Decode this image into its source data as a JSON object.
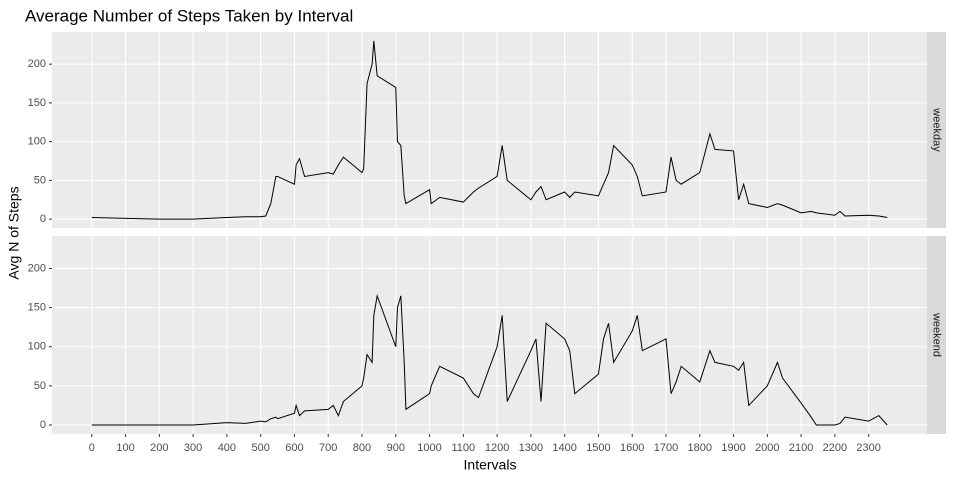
{
  "chart_data": {
    "type": "line",
    "title": "Average Number of Steps Taken by Interval",
    "x_label": "Intervals",
    "y_label": "Avg N of Steps",
    "x": [
      0,
      100,
      200,
      300,
      400,
      455,
      500,
      515,
      530,
      545,
      550,
      600,
      605,
      615,
      630,
      700,
      715,
      730,
      745,
      800,
      805,
      815,
      830,
      835,
      845,
      900,
      905,
      915,
      925,
      930,
      1000,
      1005,
      1030,
      1100,
      1130,
      1145,
      1200,
      1215,
      1230,
      1300,
      1315,
      1330,
      1345,
      1400,
      1415,
      1430,
      1500,
      1515,
      1530,
      1545,
      1600,
      1615,
      1630,
      1700,
      1715,
      1730,
      1745,
      1800,
      1830,
      1845,
      1900,
      1915,
      1930,
      1945,
      2000,
      2030,
      2045,
      2100,
      2130,
      2145,
      2200,
      2215,
      2230,
      2300,
      2330,
      2355
    ],
    "series": [
      {
        "name": "weekday",
        "color": "#000000",
        "values": [
          2,
          1,
          0,
          0,
          2,
          3,
          3,
          4,
          20,
          55,
          55,
          45,
          70,
          78,
          55,
          60,
          58,
          70,
          80,
          60,
          65,
          175,
          200,
          230,
          185,
          170,
          100,
          95,
          30,
          20,
          38,
          20,
          28,
          22,
          35,
          40,
          55,
          95,
          50,
          25,
          35,
          42,
          25,
          35,
          28,
          35,
          30,
          45,
          60,
          95,
          70,
          55,
          30,
          35,
          80,
          50,
          45,
          60,
          110,
          90,
          88,
          25,
          45,
          20,
          15,
          20,
          18,
          8,
          10,
          8,
          5,
          10,
          4,
          5,
          4,
          2
        ]
      },
      {
        "name": "weekend",
        "color": "#000000",
        "values": [
          0,
          0,
          0,
          0,
          3,
          2,
          5,
          4,
          8,
          10,
          8,
          15,
          25,
          12,
          18,
          20,
          25,
          12,
          30,
          50,
          60,
          90,
          80,
          140,
          165,
          100,
          150,
          165,
          80,
          20,
          40,
          50,
          75,
          60,
          40,
          35,
          100,
          140,
          30,
          95,
          110,
          30,
          130,
          110,
          95,
          40,
          65,
          110,
          130,
          80,
          120,
          140,
          95,
          110,
          40,
          55,
          75,
          55,
          95,
          80,
          75,
          70,
          80,
          25,
          50,
          80,
          60,
          28,
          10,
          0,
          0,
          2,
          10,
          5,
          12,
          0
        ]
      }
    ],
    "xlim": [
      -117.75,
      2472.75
    ],
    "xticks": [
      0,
      100,
      200,
      300,
      400,
      500,
      600,
      700,
      800,
      900,
      1000,
      1100,
      1200,
      1300,
      1400,
      1500,
      1600,
      1700,
      1800,
      1900,
      2000,
      2100,
      2200,
      2300
    ],
    "ylim": [
      -11.5,
      241.5
    ],
    "yticks": [
      0,
      50,
      100,
      150,
      200
    ],
    "grid": true
  }
}
